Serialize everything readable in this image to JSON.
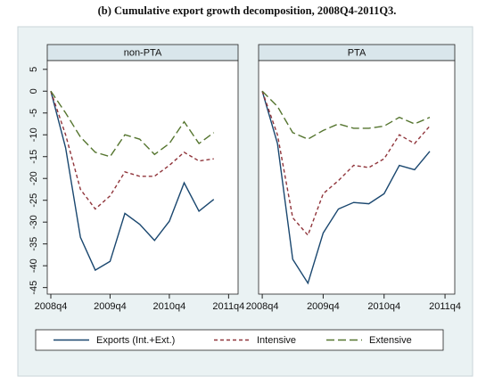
{
  "title": "(b) Cumulative export growth decomposition, 2008Q4-2011Q3.",
  "chart_data": [
    {
      "type": "line",
      "title": "non-PTA",
      "x": [
        2008.75,
        2009,
        2009.25,
        2009.5,
        2009.75,
        2010,
        2010.25,
        2010.5,
        2010.75,
        2011,
        2011.25,
        2011.5
      ],
      "xlim": [
        2008.69,
        2011.91
      ],
      "xticks": [
        {
          "value": 2008.75,
          "label": "2008q4"
        },
        {
          "value": 2009.75,
          "label": "2009q4"
        },
        {
          "value": 2010.75,
          "label": "2010q4"
        },
        {
          "value": 2011.75,
          "label": "2011q4"
        }
      ],
      "ylim": [
        -46.5,
        7
      ],
      "yticks": [
        5,
        0,
        -5,
        -10,
        -15,
        -20,
        -25,
        -30,
        -35,
        -40,
        -45
      ],
      "series": [
        {
          "name": "Exports (Int.+Ext.)",
          "color": "#1a476f",
          "dash": "none",
          "values": [
            0,
            -13,
            -33.5,
            -41,
            -39,
            -28,
            -30.5,
            -34.2,
            -29.8,
            -21,
            -27.5,
            -24.8
          ]
        },
        {
          "name": "Intensive",
          "color": "#90353b",
          "dash": "4 3",
          "values": [
            0,
            -10,
            -22.5,
            -27,
            -24,
            -18.5,
            -19.5,
            -19.5,
            -17,
            -14,
            -16,
            -15.5
          ]
        },
        {
          "name": "Extensive",
          "color": "#55752f",
          "dash": "9 4",
          "values": [
            0,
            -5,
            -10.5,
            -14,
            -15,
            -10,
            -11,
            -14.5,
            -12,
            -7,
            -12,
            -9.5
          ]
        }
      ]
    },
    {
      "type": "line",
      "title": "PTA",
      "x": [
        2008.75,
        2009,
        2009.25,
        2009.5,
        2009.75,
        2010,
        2010.25,
        2010.5,
        2010.75,
        2011,
        2011.25,
        2011.5
      ],
      "xlim": [
        2008.69,
        2011.91
      ],
      "xticks": [
        {
          "value": 2008.75,
          "label": "2008q4"
        },
        {
          "value": 2009.75,
          "label": "2009q4"
        },
        {
          "value": 2010.75,
          "label": "2010q4"
        },
        {
          "value": 2011.75,
          "label": "2011q4"
        }
      ],
      "ylim": [
        -46.5,
        7
      ],
      "series": [
        {
          "color": "#1a476f",
          "dash": "none",
          "values": [
            0,
            -12,
            -38.5,
            -44,
            -32.5,
            -27,
            -25.5,
            -25.8,
            -23.5,
            -17,
            -18,
            -13.8
          ]
        },
        {
          "color": "#90353b",
          "dash": "4 3",
          "values": [
            0,
            -10,
            -29,
            -33,
            -23.5,
            -20.5,
            -17,
            -17.5,
            -15.5,
            -10,
            -12,
            -8
          ]
        },
        {
          "color": "#55752f",
          "dash": "9 4",
          "values": [
            0,
            -3.5,
            -9.5,
            -11,
            -9,
            -7.5,
            -8.5,
            -8.5,
            -8,
            -6,
            -7.5,
            -6
          ]
        }
      ]
    }
  ]
}
